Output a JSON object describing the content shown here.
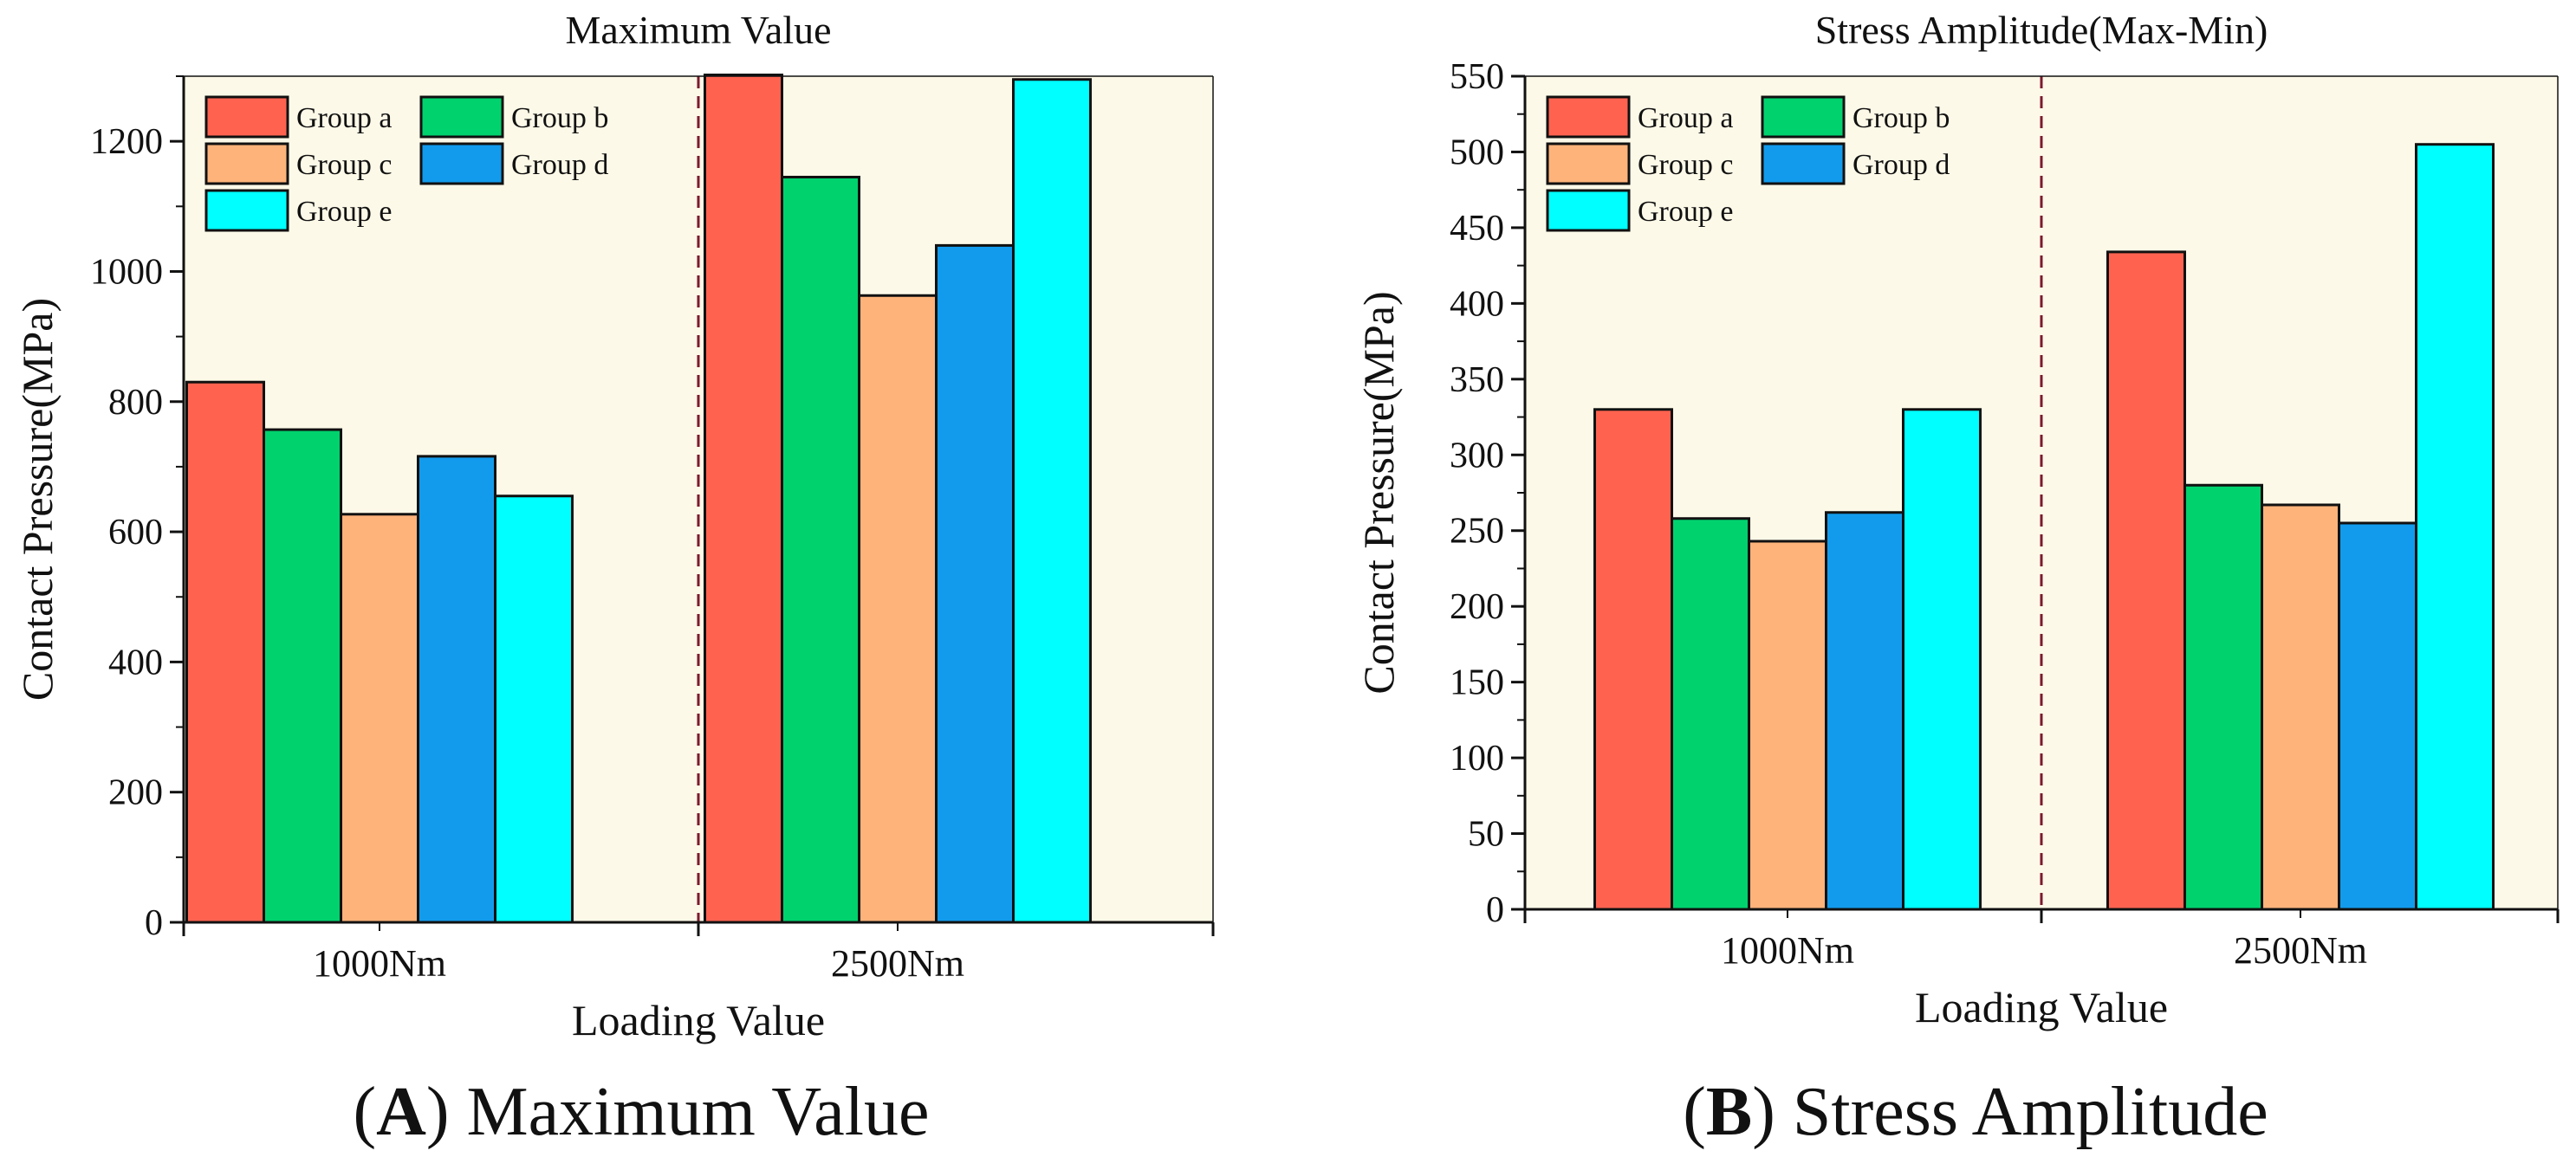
{
  "captions": [
    {
      "prefix": "(",
      "letter": "A",
      "rest": ") Maximum Value"
    },
    {
      "prefix": "(",
      "letter": "B",
      "rest": ") Stress Amplitude"
    }
  ],
  "colors": {
    "Group a": "#FF6350",
    "Group b": "#00D26E",
    "Group c": "#FDB37A",
    "Group d": "#129BEC",
    "Group e": "#00FFFF",
    "plot_background": "#FDF9E8",
    "divider": "#7A1A2E"
  },
  "chart_data": [
    {
      "type": "bar",
      "title": "Maximum Value",
      "xlabel": "Loading Value",
      "ylabel": "Contact Pressure(MPa)",
      "categories": [
        "1000Nm",
        "2500Nm"
      ],
      "ylim": [
        0,
        1300
      ],
      "yticks": [
        0,
        200,
        400,
        600,
        800,
        1000,
        1200
      ],
      "y_minor_step": 100,
      "legend": "top-left",
      "grid": false,
      "divider": "dashed vertical line between categories",
      "series": [
        {
          "name": "Group a",
          "values": [
            830,
            1302
          ]
        },
        {
          "name": "Group b",
          "values": [
            757,
            1145
          ]
        },
        {
          "name": "Group c",
          "values": [
            627,
            963
          ]
        },
        {
          "name": "Group d",
          "values": [
            716,
            1040
          ]
        },
        {
          "name": "Group e",
          "values": [
            655,
            1295
          ]
        }
      ]
    },
    {
      "type": "bar",
      "title": "Stress Amplitude(Max-Min)",
      "xlabel": "Loading Value",
      "ylabel": "Contact Pressure(MPa)",
      "categories": [
        "1000Nm",
        "2500Nm"
      ],
      "ylim": [
        0,
        550
      ],
      "yticks": [
        0,
        50,
        100,
        150,
        200,
        250,
        300,
        350,
        400,
        450,
        500,
        550
      ],
      "y_minor_step": 25,
      "legend": "top-left",
      "grid": false,
      "divider": "dashed vertical line between categories",
      "series": [
        {
          "name": "Group a",
          "values": [
            330,
            434
          ]
        },
        {
          "name": "Group b",
          "values": [
            258,
            280
          ]
        },
        {
          "name": "Group c",
          "values": [
            243,
            267
          ]
        },
        {
          "name": "Group d",
          "values": [
            262,
            255
          ]
        },
        {
          "name": "Group e",
          "values": [
            330,
            505
          ]
        }
      ]
    }
  ]
}
